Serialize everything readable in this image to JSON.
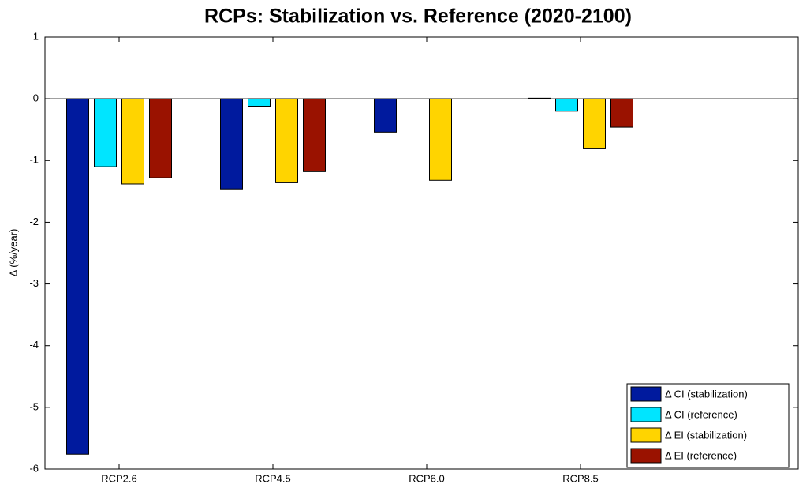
{
  "chart_data": {
    "type": "bar",
    "title": "RCPs: Stabilization vs. Reference (2020-2100)",
    "y_label": "Δ (%/year)",
    "categories": [
      "RCP2.6",
      "RCP4.5",
      "RCP6.0",
      "RCP8.5"
    ],
    "series": [
      {
        "name": "Δ CI (stabilization)",
        "color": "#001a9e",
        "values": [
          -5.76,
          -1.46,
          -0.54,
          0.01
        ]
      },
      {
        "name": "Δ CI (reference)",
        "color": "#00e5ff",
        "values": [
          -1.1,
          -0.12,
          null,
          -0.2
        ]
      },
      {
        "name": "Δ EI (stabilization)",
        "color": "#ffd400",
        "values": [
          -1.38,
          -1.36,
          -1.32,
          -0.81
        ]
      },
      {
        "name": "Δ EI (reference)",
        "color": "#9a1200",
        "values": [
          -1.28,
          -1.18,
          null,
          -0.46
        ]
      }
    ],
    "ylim": [
      -6,
      1
    ],
    "yticks": [
      -6,
      -5,
      -4,
      -3,
      -2,
      -1,
      0,
      1
    ],
    "legend": "lower right",
    "grid": false
  }
}
